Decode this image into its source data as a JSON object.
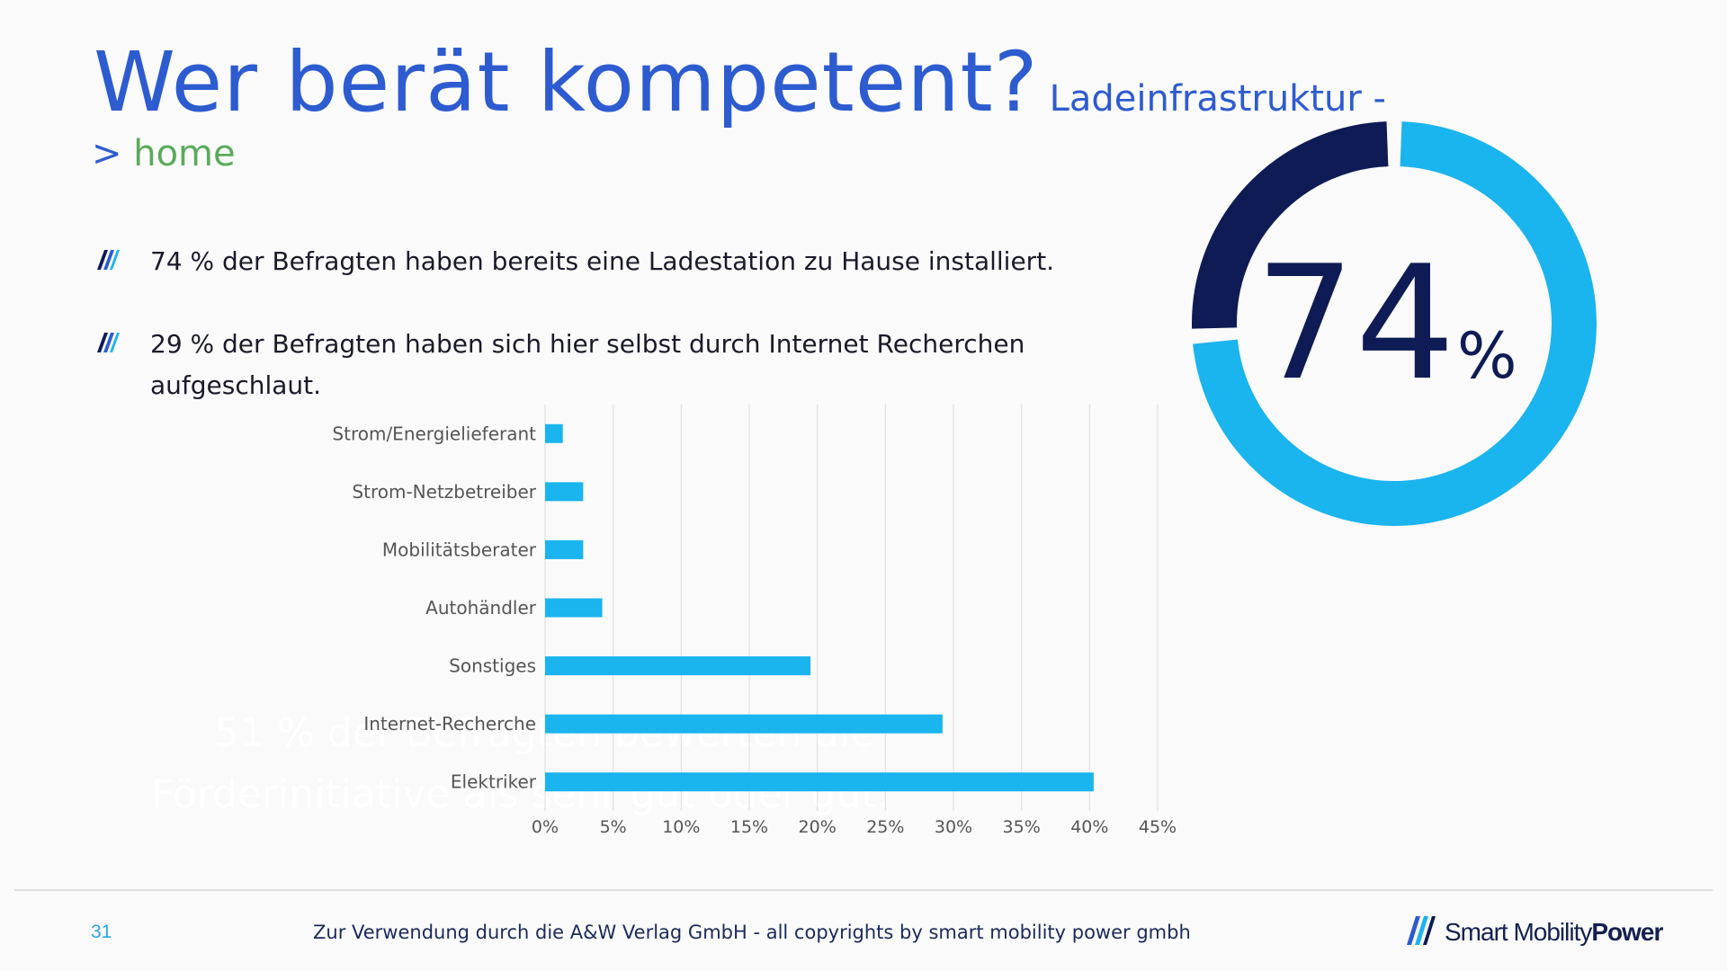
{
  "title": {
    "main": "Wer berät kompetent?",
    "sub": "Ladeinfrastruktur -",
    "arrow": ">",
    "home": "home"
  },
  "bullets": [
    "74 % der Befragten haben bereits eine Ladestation zu Hause installiert.",
    "29 % der Befragten haben sich hier selbst durch Internet Recherchen",
    "aufgeschlaut."
  ],
  "ghost_text": [
    "51 % der Befragten bewerten die",
    "Förderinitiative als sehr gut oder gut."
  ],
  "colors": {
    "accent_blue": "#2d5bd0",
    "bar": "#1ab4ee",
    "donut_light": "#1ab4ee",
    "donut_dark": "#0e1b55",
    "home_green": "#5aab5a"
  },
  "chart_data": [
    {
      "type": "bar",
      "orientation": "horizontal",
      "categories": [
        "Strom/Energielieferant",
        "Strom-Netzbetreiber",
        "Mobilitätsberater",
        "Autohändler",
        "Sonstiges",
        "Internet-Recherche",
        "Elektriker"
      ],
      "values": [
        1.3,
        2.8,
        2.8,
        4.2,
        19.5,
        29.2,
        40.3
      ],
      "x_ticks": [
        "0%",
        "5%",
        "10%",
        "15%",
        "20%",
        "25%",
        "30%",
        "35%",
        "40%",
        "45%"
      ],
      "xlim": [
        0,
        45
      ],
      "grid": true,
      "title": "",
      "xlabel": "",
      "ylabel": ""
    },
    {
      "type": "pie",
      "donut": true,
      "values": [
        74,
        26
      ],
      "center_value": "74",
      "center_unit": "%"
    }
  ],
  "footer": {
    "page_number": "31",
    "text": "Zur Verwendung durch die A&W Verlag GmbH  - all copyrights by smart mobility power gmbh",
    "brand_light": "Smart Mobility",
    "brand_bold": "Power"
  }
}
